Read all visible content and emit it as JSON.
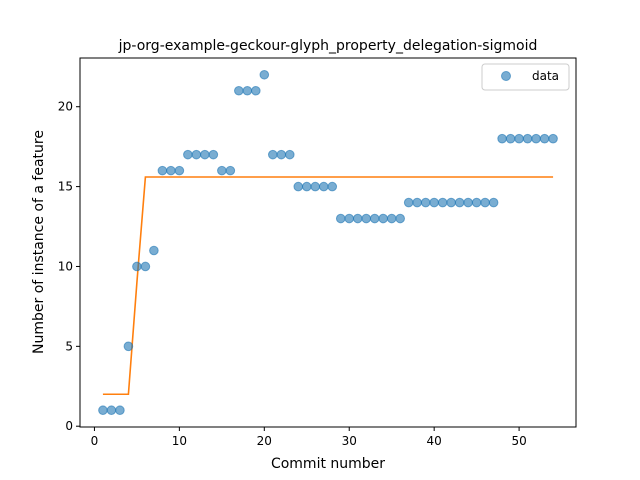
{
  "chart_data": {
    "type": "scatter",
    "title": "jp-org-example-geckour-glyph_property_delegation-sigmoid",
    "xlabel": "Commit number",
    "ylabel": "Number of instance of a feature",
    "xlim": [
      -1.7,
      56.7
    ],
    "ylim": [
      -0.05,
      23.05
    ],
    "xticks": [
      0,
      10,
      20,
      30,
      40,
      50
    ],
    "yticks": [
      0,
      5,
      10,
      15,
      20
    ],
    "grid": false,
    "legend_position": "top-right",
    "series": [
      {
        "name": "data",
        "kind": "scatter",
        "color": "#1f77b4",
        "x": [
          1,
          2,
          3,
          4,
          5,
          6,
          7,
          8,
          9,
          10,
          11,
          12,
          13,
          14,
          15,
          16,
          17,
          18,
          19,
          20,
          21,
          22,
          23,
          24,
          25,
          26,
          27,
          28,
          29,
          30,
          31,
          32,
          33,
          34,
          35,
          36,
          37,
          38,
          39,
          40,
          41,
          42,
          43,
          44,
          45,
          46,
          47,
          48,
          49,
          50,
          51,
          52,
          53,
          54
        ],
        "y": [
          1,
          1,
          1,
          5,
          10,
          10,
          11,
          16,
          16,
          16,
          17,
          17,
          17,
          17,
          16,
          16,
          21,
          21,
          21,
          22,
          17,
          17,
          17,
          15,
          15,
          15,
          15,
          15,
          13,
          13,
          13,
          13,
          13,
          13,
          13,
          13,
          14,
          14,
          14,
          14,
          14,
          14,
          14,
          14,
          14,
          14,
          14,
          18,
          18,
          18,
          18,
          18,
          18,
          18
        ]
      },
      {
        "kind": "line",
        "color": "#ff7f0e",
        "x": [
          1,
          2,
          3,
          4,
          5,
          6,
          7,
          8,
          9,
          10,
          11,
          12,
          13,
          14,
          15,
          16,
          17,
          18,
          19,
          20,
          21,
          22,
          23,
          24,
          25,
          26,
          27,
          28,
          29,
          30,
          31,
          32,
          33,
          34,
          35,
          36,
          37,
          38,
          39,
          40,
          41,
          42,
          43,
          44,
          45,
          46,
          47,
          48,
          49,
          50,
          51,
          52,
          53,
          54
        ],
        "y": [
          2,
          2,
          2,
          2,
          9,
          15.6,
          15.6,
          15.6,
          15.6,
          15.6,
          15.6,
          15.6,
          15.6,
          15.6,
          15.6,
          15.6,
          15.6,
          15.6,
          15.6,
          15.6,
          15.6,
          15.6,
          15.6,
          15.6,
          15.6,
          15.6,
          15.6,
          15.6,
          15.6,
          15.6,
          15.6,
          15.6,
          15.6,
          15.6,
          15.6,
          15.6,
          15.6,
          15.6,
          15.6,
          15.6,
          15.6,
          15.6,
          15.6,
          15.6,
          15.6,
          15.6,
          15.6,
          15.6,
          15.6,
          15.6,
          15.6,
          15.6,
          15.6,
          15.6
        ]
      }
    ],
    "legend": [
      {
        "label": "data",
        "color": "#1f77b4"
      }
    ]
  }
}
